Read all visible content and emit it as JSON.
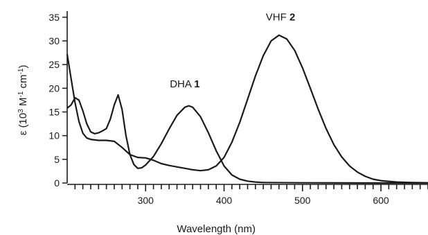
{
  "chart_data": {
    "type": "line",
    "title": "",
    "xlabel": "Wavelength (nm)",
    "ylabel_parts": [
      "ε (10",
      "3",
      " M",
      "-1",
      " cm",
      "-1",
      ")"
    ],
    "xlim": [
      200,
      660
    ],
    "ylim": [
      0,
      36
    ],
    "x_ticks": [
      300,
      400,
      500,
      600
    ],
    "y_ticks": [
      0,
      5,
      10,
      15,
      20,
      25,
      30,
      35
    ],
    "x_minor_step": 10,
    "series": [
      {
        "label_name": "DHA ",
        "label_num": "1",
        "label_at": [
          350,
          20.2
        ],
        "color": "#1a1a1a",
        "points": [
          [
            200,
            15.8
          ],
          [
            205,
            16.5
          ],
          [
            210,
            18.0
          ],
          [
            215,
            17.5
          ],
          [
            220,
            15.2
          ],
          [
            225,
            12.5
          ],
          [
            230,
            10.8
          ],
          [
            235,
            10.4
          ],
          [
            240,
            10.6
          ],
          [
            245,
            11.0
          ],
          [
            250,
            11.5
          ],
          [
            255,
            13.5
          ],
          [
            260,
            16.5
          ],
          [
            265,
            18.6
          ],
          [
            270,
            15.5
          ],
          [
            275,
            10.0
          ],
          [
            280,
            6.0
          ],
          [
            285,
            3.9
          ],
          [
            290,
            3.1
          ],
          [
            295,
            3.2
          ],
          [
            300,
            3.8
          ],
          [
            310,
            5.6
          ],
          [
            320,
            8.3
          ],
          [
            330,
            11.4
          ],
          [
            340,
            14.3
          ],
          [
            350,
            16.0
          ],
          [
            355,
            16.3
          ],
          [
            360,
            16.0
          ],
          [
            370,
            14.0
          ],
          [
            380,
            10.6
          ],
          [
            390,
            6.8
          ],
          [
            400,
            3.6
          ],
          [
            410,
            1.7
          ],
          [
            420,
            0.8
          ],
          [
            430,
            0.4
          ],
          [
            440,
            0.2
          ],
          [
            450,
            0.1
          ],
          [
            500,
            0.05
          ],
          [
            600,
            0.0
          ],
          [
            660,
            0.0
          ]
        ]
      },
      {
        "label_name": "VHF ",
        "label_num": "2",
        "label_at": [
          472,
          34.3
        ],
        "color": "#1a1a1a",
        "points": [
          [
            200,
            27.2
          ],
          [
            205,
            22.0
          ],
          [
            210,
            17.0
          ],
          [
            215,
            13.0
          ],
          [
            220,
            10.5
          ],
          [
            225,
            9.5
          ],
          [
            230,
            9.2
          ],
          [
            240,
            9.0
          ],
          [
            250,
            9.0
          ],
          [
            260,
            8.8
          ],
          [
            270,
            7.5
          ],
          [
            280,
            6.0
          ],
          [
            290,
            5.4
          ],
          [
            300,
            5.3
          ],
          [
            310,
            4.8
          ],
          [
            320,
            4.1
          ],
          [
            330,
            3.7
          ],
          [
            340,
            3.4
          ],
          [
            350,
            3.1
          ],
          [
            360,
            2.8
          ],
          [
            370,
            2.6
          ],
          [
            380,
            2.8
          ],
          [
            390,
            3.6
          ],
          [
            400,
            5.4
          ],
          [
            410,
            8.6
          ],
          [
            420,
            12.8
          ],
          [
            430,
            17.7
          ],
          [
            440,
            22.6
          ],
          [
            450,
            26.9
          ],
          [
            460,
            30.0
          ],
          [
            470,
            31.2
          ],
          [
            480,
            30.4
          ],
          [
            490,
            28.0
          ],
          [
            500,
            24.3
          ],
          [
            510,
            20.0
          ],
          [
            520,
            15.6
          ],
          [
            530,
            11.5
          ],
          [
            540,
            8.1
          ],
          [
            550,
            5.5
          ],
          [
            560,
            3.6
          ],
          [
            570,
            2.3
          ],
          [
            580,
            1.4
          ],
          [
            590,
            0.8
          ],
          [
            600,
            0.5
          ],
          [
            620,
            0.2
          ],
          [
            640,
            0.1
          ],
          [
            660,
            0.05
          ]
        ]
      }
    ]
  }
}
